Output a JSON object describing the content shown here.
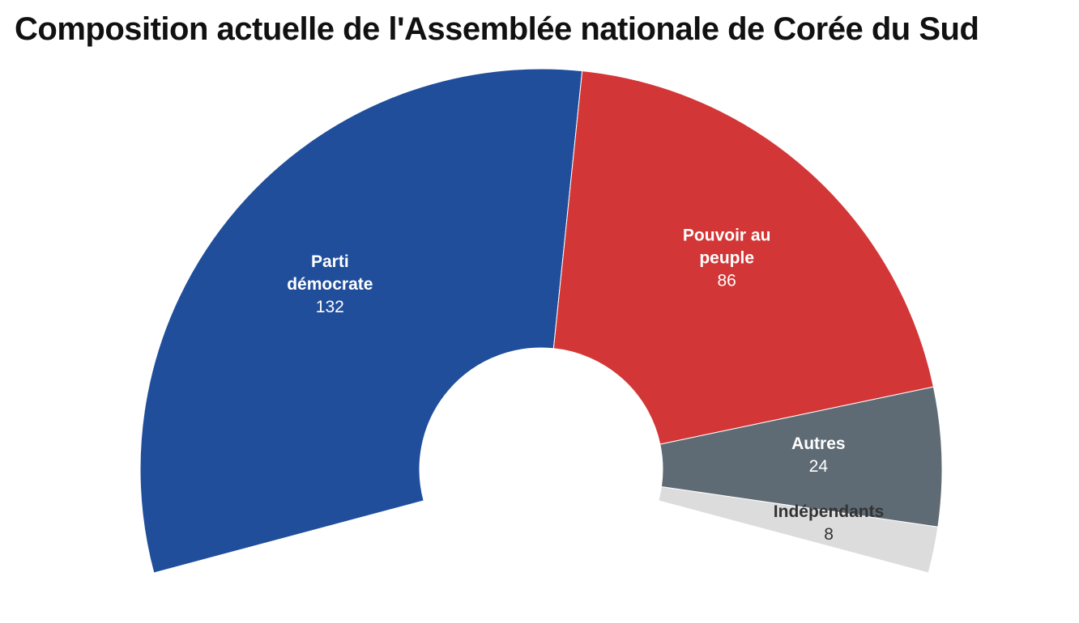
{
  "chart_data": {
    "type": "pie",
    "subtype": "semi-donut",
    "title": "Composition actuelle de l'Assemblée nationale de Corée du Sud",
    "slices": [
      {
        "key": "parti-democrate",
        "label_lines": [
          "Parti",
          "démocrate"
        ],
        "value": 132,
        "color": "#204e9b",
        "text_color": "#ffffff"
      },
      {
        "key": "pouvoir-au-peuple",
        "label_lines": [
          "Pouvoir au",
          "peuple"
        ],
        "value": 86,
        "color": "#d33636",
        "text_color": "#ffffff"
      },
      {
        "key": "autres",
        "label_lines": [
          "Autres"
        ],
        "value": 24,
        "color": "#5f6b74",
        "text_color": "#ffffff"
      },
      {
        "key": "independants",
        "label_lines": [
          "Indépendants"
        ],
        "value": 8,
        "color": "#dcdcdc",
        "text_color": "#333333"
      }
    ]
  }
}
